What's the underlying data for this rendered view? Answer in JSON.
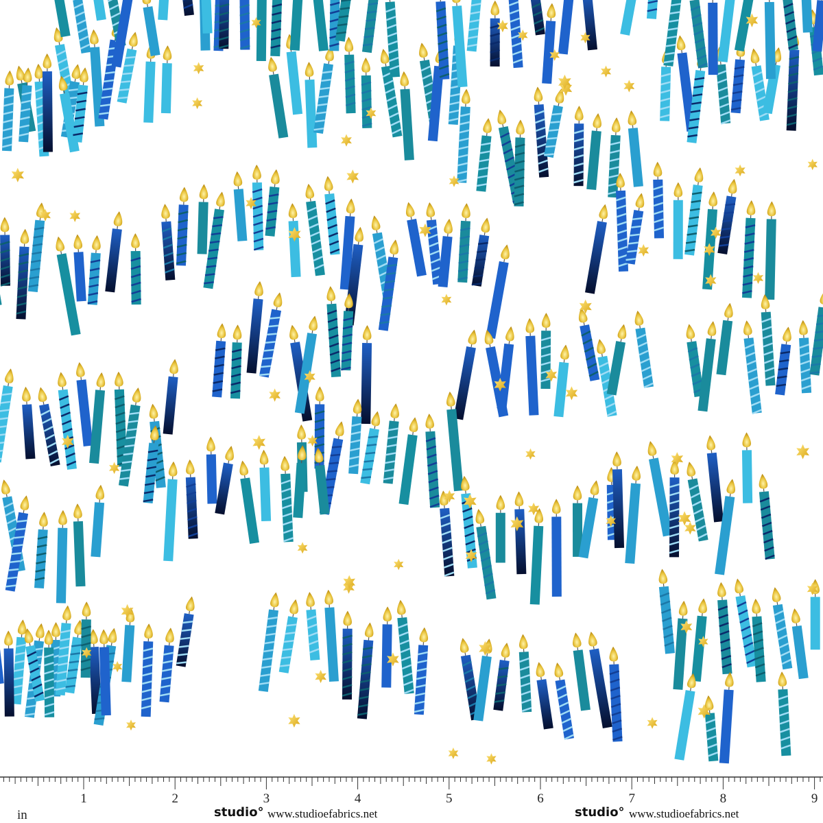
{
  "ruler": {
    "unit": "in",
    "labels": [
      "1",
      "2",
      "3",
      "4",
      "5",
      "6",
      "7",
      "8",
      "9"
    ]
  },
  "brands": [
    {
      "logo": "studio°",
      "url": "www.studioefabrics.net"
    },
    {
      "logo": "studio°",
      "url": "www.studioefabrics.net"
    }
  ]
}
